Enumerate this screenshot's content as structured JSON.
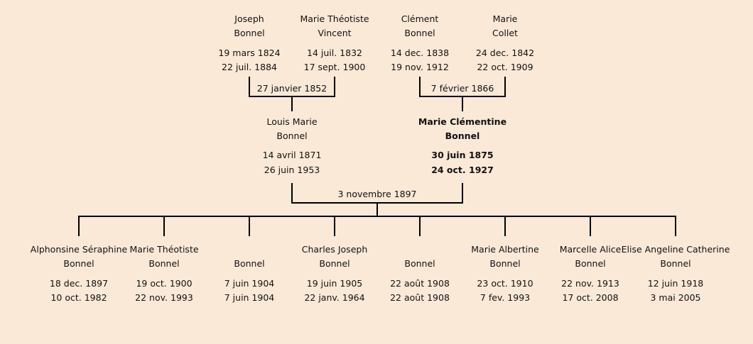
{
  "grandparents": [
    {
      "name": [
        "Joseph",
        "Bonnel"
      ],
      "birth": "19 mars 1824",
      "death": "22 juil. 1884"
    },
    {
      "name": [
        "Marie Théotiste",
        "Vincent"
      ],
      "birth": "14 juil. 1832",
      "death": "17 sept. 1900"
    },
    {
      "name": [
        "Clément",
        "Bonnel"
      ],
      "birth": "14 dec. 1838",
      "death": "19 nov. 1912"
    },
    {
      "name": [
        "Marie",
        "Collet"
      ],
      "birth": "24 dec. 1842",
      "death": "22 oct. 1909"
    }
  ],
  "grandparent_marriages": [
    "27 janvier 1852",
    "7 février 1866"
  ],
  "parents": [
    {
      "name": [
        "Louis Marie",
        "Bonnel"
      ],
      "birth": "14 avril 1871",
      "death": "26 juin 1953",
      "highlight": false
    },
    {
      "name": [
        "Marie Clémentine",
        "Bonnel"
      ],
      "birth": "30 juin 1875",
      "death": "24 oct. 1927",
      "highlight": true
    }
  ],
  "parent_marriage": "3 novembre 1897",
  "children": [
    {
      "name": [
        "Alphonsine Séraphine",
        "Bonnel"
      ],
      "birth": "18 dec. 1897",
      "death": "10 oct. 1982"
    },
    {
      "name": [
        "Marie Théotiste",
        "Bonnel"
      ],
      "birth": "19 oct. 1900",
      "death": "22 nov. 1993"
    },
    {
      "name": [
        "",
        "Bonnel"
      ],
      "birth": "7 juin 1904",
      "death": "7 juin 1904"
    },
    {
      "name": [
        "Charles Joseph",
        "Bonnel"
      ],
      "birth": "19 juin 1905",
      "death": "22 janv. 1964"
    },
    {
      "name": [
        "",
        "Bonnel"
      ],
      "birth": "22 août 1908",
      "death": "22 août 1908"
    },
    {
      "name": [
        "Marie Albertine",
        "Bonnel"
      ],
      "birth": "23 oct. 1910",
      "death": "7 fev. 1993"
    },
    {
      "name": [
        "Marcelle Alice",
        "Bonnel"
      ],
      "birth": "22 nov. 1913",
      "death": "17 oct. 2008"
    },
    {
      "name": [
        "Elise Angeline Catherine",
        "Bonnel"
      ],
      "birth": "12 juin 1918",
      "death": "3 mai 2005"
    }
  ],
  "colors": {
    "background": "#fbe9d7",
    "line": "#000000"
  }
}
